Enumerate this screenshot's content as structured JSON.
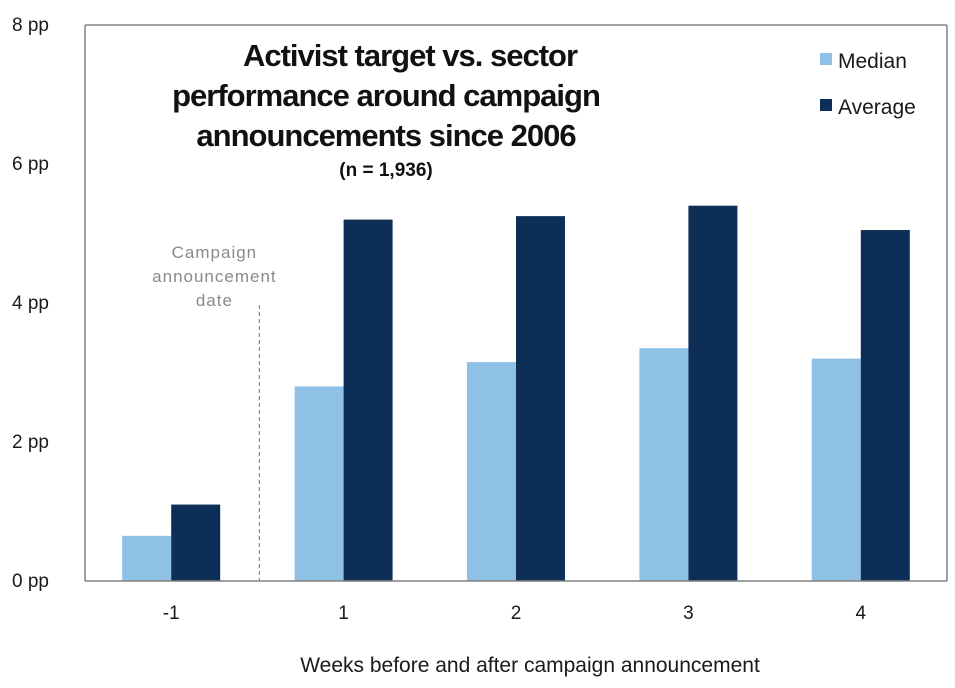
{
  "chart_data": {
    "type": "bar",
    "title_lines": [
      "Activist target vs. sector",
      "performance around campaign",
      "announcements since 2006"
    ],
    "subtitle": "(n = 1,936)",
    "xlabel": "Weeks before and after campaign announcement",
    "ylabel": "",
    "categories": [
      "-1",
      "1",
      "2",
      "3",
      "4"
    ],
    "series": [
      {
        "name": "Median",
        "values": [
          0.65,
          2.8,
          3.15,
          3.35,
          3.2
        ]
      },
      {
        "name": "Average",
        "values": [
          1.1,
          5.2,
          5.25,
          5.4,
          5.05
        ]
      }
    ],
    "ylim": [
      0,
      8
    ],
    "yticks": [
      0,
      2,
      4,
      6,
      8
    ],
    "ytick_suffix": " pp",
    "ytick_labels": [
      "0 pp",
      "2 pp",
      "4 pp",
      "6 pp",
      "8 pp"
    ],
    "grid": false,
    "legend_position": "top-right",
    "annotation": {
      "lines": [
        "Campaign",
        "announcement",
        "date"
      ],
      "between_categories": [
        "-1",
        "1"
      ],
      "style": "dashed vertical line"
    },
    "colors": {
      "Median": "#8fc0e6",
      "Average": "#0d2f57",
      "axis": "#808080",
      "annotation": "#8a8a8a"
    }
  }
}
